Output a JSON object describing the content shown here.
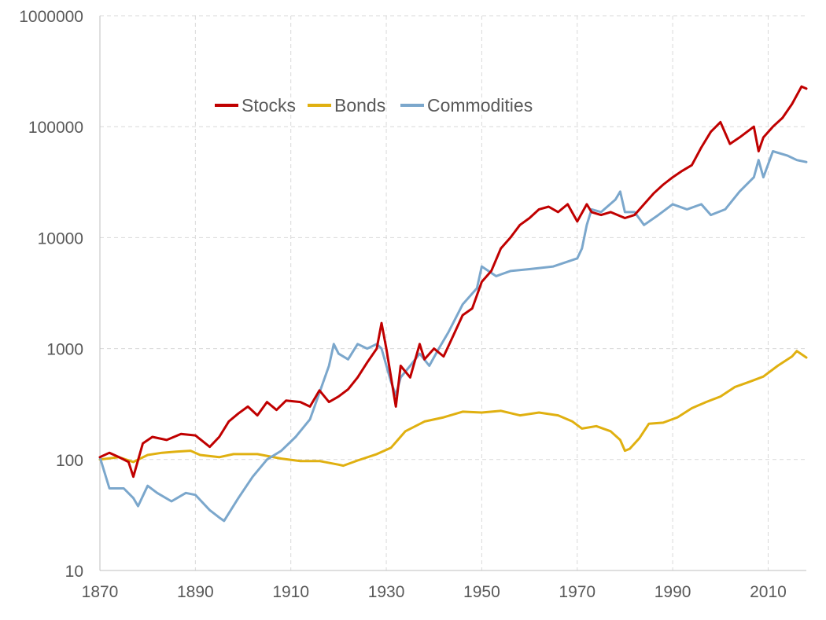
{
  "chart_data": {
    "type": "line",
    "title": "",
    "xlabel": "",
    "ylabel": "",
    "xlim": [
      1870,
      2018
    ],
    "ylim": [
      10,
      1000000
    ],
    "y_scale": "log",
    "x_ticks": [
      1870,
      1890,
      1910,
      1930,
      1950,
      1970,
      1990,
      2010
    ],
    "y_ticks": [
      10,
      100,
      1000,
      10000,
      100000,
      1000000
    ],
    "x_tick_labels": [
      "1870",
      "1890",
      "1910",
      "1930",
      "1950",
      "1970",
      "1990",
      "2010"
    ],
    "y_tick_labels": [
      "10",
      "100",
      "1000",
      "10000",
      "100000",
      "1000000"
    ],
    "grid": true,
    "legend_position": "top-center",
    "series": [
      {
        "name": "Stocks",
        "color": "#C00000",
        "x": [
          1870,
          1872,
          1874,
          1876,
          1877,
          1879,
          1881,
          1884,
          1887,
          1890,
          1893,
          1895,
          1897,
          1899,
          1901,
          1903,
          1905,
          1907,
          1909,
          1912,
          1914,
          1916,
          1918,
          1920,
          1922,
          1924,
          1926,
          1928,
          1929,
          1930,
          1931,
          1932,
          1933,
          1935,
          1937,
          1938,
          1940,
          1942,
          1944,
          1946,
          1948,
          1950,
          1952,
          1954,
          1956,
          1958,
          1960,
          1962,
          1964,
          1966,
          1968,
          1970,
          1972,
          1973,
          1975,
          1977,
          1980,
          1982,
          1984,
          1986,
          1988,
          1990,
          1992,
          1994,
          1996,
          1998,
          2000,
          2002,
          2004,
          2007,
          2008,
          2009,
          2011,
          2013,
          2015,
          2017,
          2018
        ],
        "values": [
          105,
          115,
          105,
          95,
          70,
          140,
          160,
          150,
          170,
          165,
          130,
          160,
          220,
          260,
          300,
          250,
          330,
          280,
          340,
          330,
          300,
          420,
          330,
          370,
          430,
          550,
          750,
          1000,
          1700,
          1000,
          550,
          300,
          700,
          550,
          1100,
          800,
          1000,
          850,
          1300,
          2000,
          2300,
          4000,
          5000,
          8000,
          10000,
          13000,
          15000,
          18000,
          19000,
          17000,
          20000,
          14000,
          20000,
          17000,
          16000,
          17000,
          15000,
          16000,
          20000,
          25000,
          30000,
          35000,
          40000,
          45000,
          65000,
          90000,
          110000,
          70000,
          80000,
          100000,
          60000,
          80000,
          100000,
          120000,
          160000,
          230000,
          220000
        ]
      },
      {
        "name": "Bonds",
        "color": "#E0B010",
        "x": [
          1870,
          1874,
          1877,
          1880,
          1883,
          1886,
          1889,
          1891,
          1895,
          1898,
          1903,
          1908,
          1912,
          1916,
          1920,
          1921,
          1924,
          1928,
          1931,
          1934,
          1938,
          1942,
          1946,
          1950,
          1954,
          1958,
          1962,
          1966,
          1969,
          1971,
          1974,
          1977,
          1979,
          1980,
          1981,
          1983,
          1985,
          1988,
          1991,
          1994,
          1997,
          2000,
          2003,
          2006,
          2009,
          2012,
          2015,
          2016,
          2018
        ],
        "values": [
          100,
          105,
          95,
          110,
          115,
          118,
          120,
          110,
          105,
          112,
          112,
          102,
          97,
          97,
          90,
          88,
          98,
          112,
          128,
          180,
          220,
          240,
          270,
          265,
          275,
          250,
          265,
          250,
          220,
          190,
          200,
          180,
          150,
          120,
          125,
          155,
          210,
          215,
          240,
          290,
          330,
          370,
          450,
          500,
          560,
          700,
          850,
          950,
          830
        ]
      },
      {
        "name": "Commodities",
        "color": "#7BA7CC",
        "x": [
          1870,
          1872,
          1875,
          1877,
          1878,
          1880,
          1882,
          1885,
          1888,
          1890,
          1893,
          1895,
          1896,
          1899,
          1902,
          1905,
          1908,
          1911,
          1914,
          1916,
          1918,
          1919,
          1920,
          1922,
          1924,
          1926,
          1928,
          1929,
          1931,
          1932,
          1933,
          1935,
          1937,
          1939,
          1941,
          1943,
          1946,
          1949,
          1950,
          1953,
          1956,
          1960,
          1965,
          1970,
          1971,
          1972,
          1973,
          1975,
          1978,
          1979,
          1980,
          1982,
          1984,
          1987,
          1990,
          1993,
          1996,
          1998,
          2001,
          2004,
          2007,
          2008,
          2009,
          2011,
          2014,
          2016,
          2018
        ],
        "values": [
          105,
          55,
          55,
          45,
          38,
          58,
          50,
          42,
          50,
          48,
          35,
          30,
          28,
          45,
          70,
          100,
          120,
          160,
          230,
          400,
          700,
          1100,
          900,
          800,
          1100,
          1000,
          1100,
          1000,
          500,
          380,
          550,
          700,
          900,
          700,
          1000,
          1400,
          2500,
          3500,
          5500,
          4500,
          5000,
          5200,
          5500,
          6500,
          8000,
          13000,
          18000,
          17000,
          22000,
          26000,
          17000,
          17000,
          13000,
          16000,
          20000,
          18000,
          20000,
          16000,
          18000,
          26000,
          35000,
          50000,
          35000,
          60000,
          55000,
          50000,
          48000
        ]
      }
    ]
  }
}
